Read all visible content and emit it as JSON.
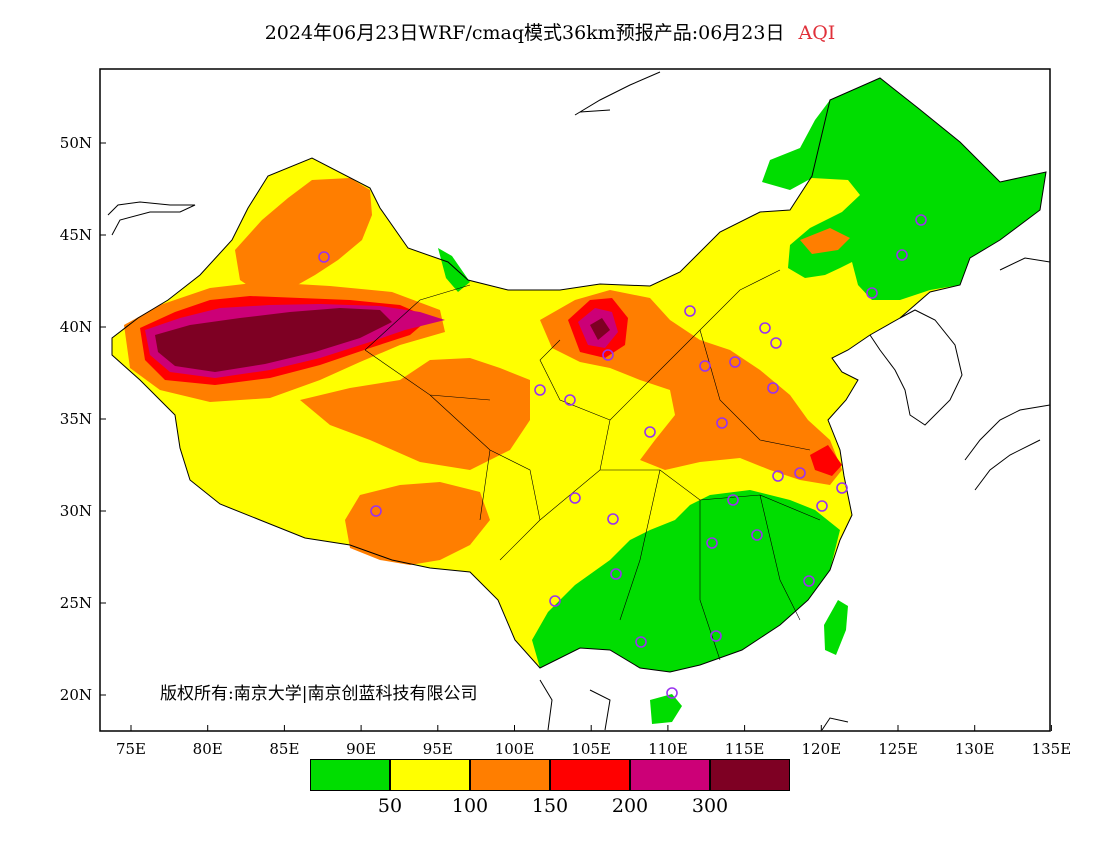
{
  "title": {
    "main": "2024年06月23日WRF/cmaq模式36km预报产品:06月23日",
    "product": "AQI",
    "product_color": "#e0303a"
  },
  "axes": {
    "lon_ticks": [
      "75E",
      "80E",
      "85E",
      "90E",
      "95E",
      "100E",
      "105E",
      "110E",
      "115E",
      "120E",
      "125E",
      "130E",
      "135E"
    ],
    "lat_ticks": [
      "50N",
      "45N",
      "40N",
      "35N",
      "30N",
      "25N",
      "20N"
    ],
    "lon_range": [
      73,
      135
    ],
    "lat_range": [
      18,
      54
    ]
  },
  "copyright": "版权所有:南京大学|南京创蓝科技有限公司",
  "legend": {
    "colors": [
      "#00dd00",
      "#ffff00",
      "#ff7e00",
      "#ff0000",
      "#cc0077",
      "#7e0023"
    ],
    "labels": [
      "50",
      "100",
      "150",
      "200",
      "300"
    ]
  },
  "map": {
    "country": "China",
    "variable": "AQI",
    "station_marker_color": "#9933ee"
  }
}
